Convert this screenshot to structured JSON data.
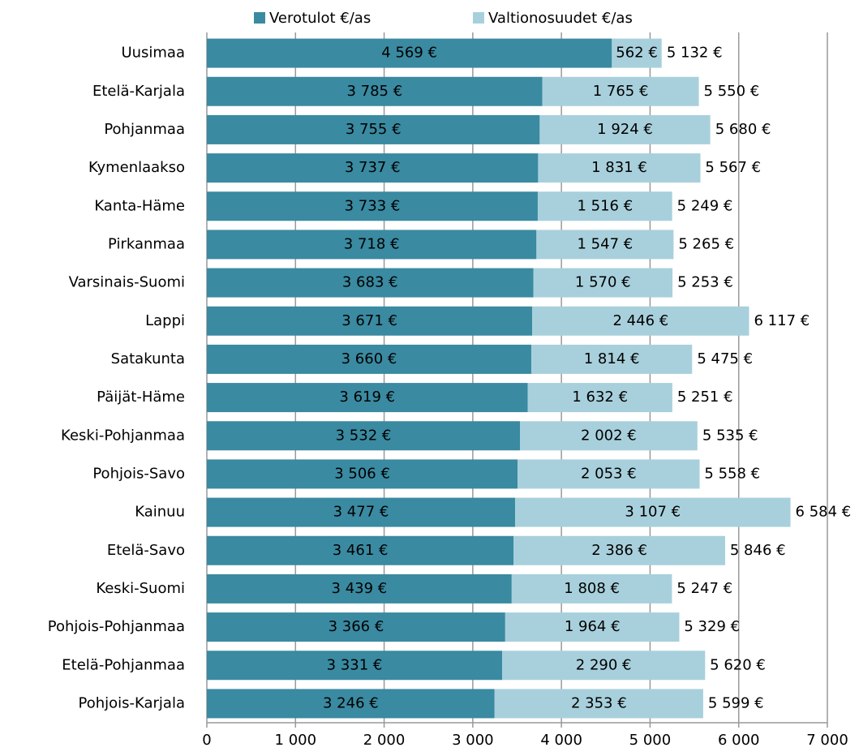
{
  "chart_data": {
    "type": "stacked_barh",
    "categories": [
      "Uusimaa",
      "Etelä-Karjala",
      "Pohjanmaa",
      "Kymenlaakso",
      "Kanta-Häme",
      "Pirkanmaa",
      "Varsinais-Suomi",
      "Lappi",
      "Satakunta",
      "Päijät-Häme",
      "Keski-Pohjanmaa",
      "Pohjois-Savo",
      "Kainuu",
      "Etelä-Savo",
      "Keski-Suomi",
      "Pohjois-Pohjanmaa",
      "Etelä-Pohjanmaa",
      "Pohjois-Karjala"
    ],
    "series": [
      {
        "name": "Verotulot €/as",
        "color": "#3a8aa1",
        "values": [
          4569,
          3785,
          3755,
          3737,
          3733,
          3718,
          3683,
          3671,
          3660,
          3619,
          3532,
          3506,
          3477,
          3461,
          3439,
          3366,
          3331,
          3246
        ],
        "value_labels": [
          "4 569 €",
          "3 785 €",
          "3 755 €",
          "3 737 €",
          "3 733 €",
          "3 718 €",
          "3 683 €",
          "3 671 €",
          "3 660 €",
          "3 619 €",
          "3 532 €",
          "3 506 €",
          "3 477 €",
          "3 461 €",
          "3 439 €",
          "3 366 €",
          "3 331 €",
          "3 246 €"
        ]
      },
      {
        "name": "Valtionosuudet €/as",
        "color": "#a8d0dc",
        "values": [
          562,
          1765,
          1924,
          1831,
          1516,
          1547,
          1570,
          2446,
          1814,
          1632,
          2002,
          2053,
          3107,
          2386,
          1808,
          1964,
          2290,
          2353
        ],
        "value_labels": [
          "562 €",
          "1 765 €",
          "1 924 €",
          "1 831 €",
          "1 516 €",
          "1 547 €",
          "1 570 €",
          "2 446 €",
          "1 814 €",
          "1 632 €",
          "2 002 €",
          "2 053 €",
          "3 107 €",
          "2 386 €",
          "1 808 €",
          "1 964 €",
          "2 290 €",
          "2 353 €"
        ]
      }
    ],
    "totals": {
      "values": [
        5132,
        5550,
        5680,
        5567,
        5249,
        5265,
        5253,
        6117,
        5475,
        5251,
        5535,
        5558,
        6584,
        5846,
        5247,
        5329,
        5620,
        5599
      ],
      "value_labels": [
        "5 132 €",
        "5 550 €",
        "5 680 €",
        "5 567 €",
        "5 249 €",
        "5 265 €",
        "5 253 €",
        "6 117 €",
        "5 475 €",
        "5 251 €",
        "5 535 €",
        "5 558 €",
        "6 584 €",
        "5 846 €",
        "5 247 €",
        "5 329 €",
        "5 620 €",
        "5 599 €"
      ]
    },
    "xlim": [
      0,
      7000
    ],
    "xticks": [
      0,
      {
        "value": 1000,
        "label": "1 000"
      },
      {
        "value": 2000,
        "label": "2 000"
      },
      {
        "value": 3000,
        "label": "3 000"
      },
      {
        "value": 4000,
        "label": "4 000"
      },
      {
        "value": 5000,
        "label": "5 000"
      },
      {
        "value": 6000,
        "label": "6 000"
      },
      {
        "value": 7000,
        "label": "7 000"
      }
    ],
    "grid": true,
    "legend": "top"
  }
}
